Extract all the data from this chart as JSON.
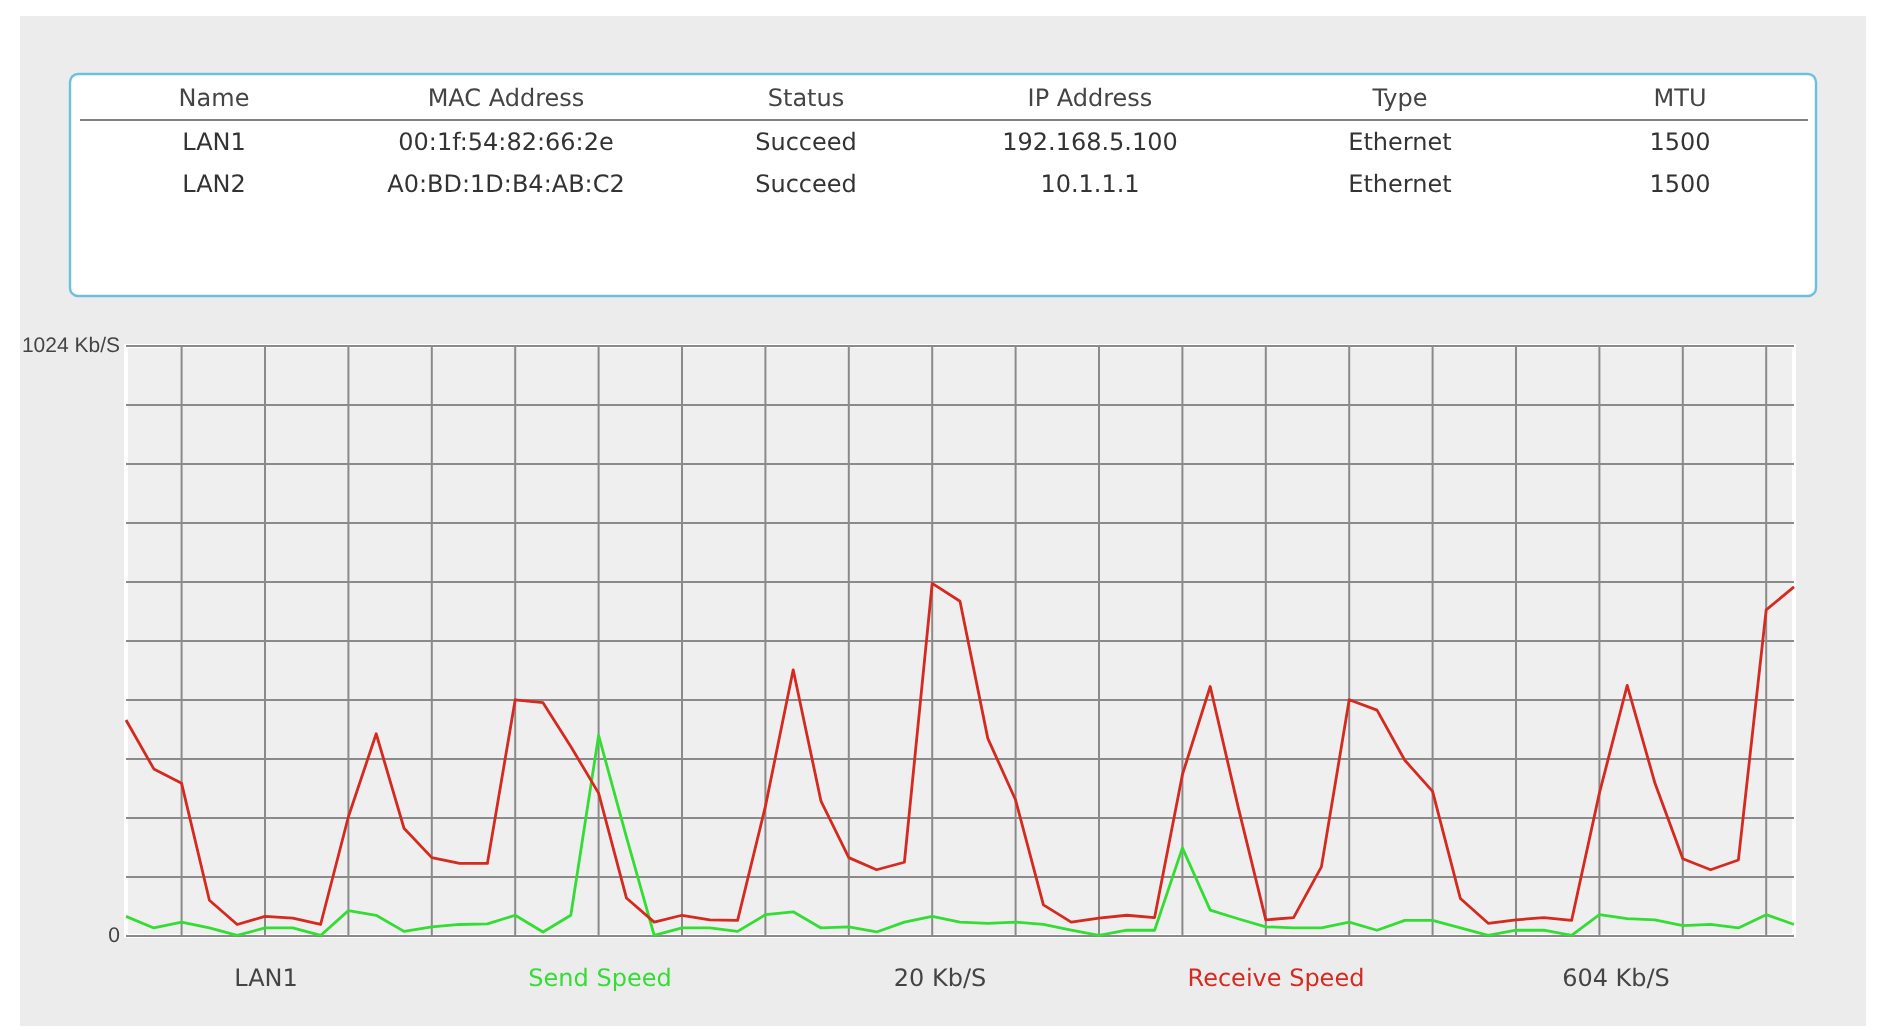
{
  "chart_data": [
    {
      "type": "other",
      "categories": [
        "Name",
        "MAC Address",
        "Status",
        "IP Address",
        "Type",
        "MTU"
      ],
      "cell_labels": [
        [
          "LAN1",
          "00:1f:54:82:66:2e",
          "Succeed",
          "192.168.5.100",
          "Ethernet",
          "1500"
        ],
        [
          "LAN2",
          "A0:BD:1D:B4:AB:C2",
          "Succeed",
          "10.1.1.1",
          "Ethernet",
          "1500"
        ]
      ]
    },
    {
      "type": "line",
      "categories": [
        null,
        null,
        null,
        null,
        null,
        null,
        null,
        null,
        null,
        null,
        null,
        null,
        null,
        null,
        null,
        null,
        null,
        null,
        null,
        null,
        null,
        null,
        null,
        null,
        null,
        null,
        null,
        null,
        null,
        null,
        null,
        null,
        null,
        null,
        null,
        null,
        null,
        null,
        null,
        null,
        null,
        null,
        null,
        null,
        null,
        null,
        null,
        null,
        null,
        null,
        null,
        null,
        null,
        null,
        null,
        null,
        null,
        null,
        null,
        null,
        null
      ],
      "series": [
        {
          "name": "Send Speed",
          "color": "#33dd33",
          "values": [
            34,
            14,
            24,
            14,
            1,
            14,
            14,
            1,
            44,
            36,
            8,
            16,
            20,
            21,
            36,
            7,
            36,
            348,
            172,
            1,
            14,
            14,
            8,
            37,
            42,
            14,
            16,
            7,
            24,
            34,
            24,
            22,
            24,
            20,
            10,
            1,
            10,
            10,
            153,
            45,
            30,
            16,
            14,
            14,
            24,
            10,
            27,
            27,
            14,
            1,
            10,
            10,
            1,
            37,
            30,
            28,
            18,
            20,
            14,
            37,
            20
          ]
        },
        {
          "name": "Receive Speed",
          "color": "#d42a1f",
          "values": [
            375,
            290,
            265,
            62,
            20,
            34,
            31,
            20,
            207,
            351,
            187,
            136,
            126,
            126,
            410,
            405,
            329,
            248,
            66,
            24,
            36,
            28,
            27,
            225,
            462,
            234,
            136,
            115,
            128,
            612,
            581,
            343,
            236,
            54,
            24,
            31,
            36,
            32,
            280,
            433,
            225,
            28,
            32,
            120,
            410,
            392,
            305,
            251,
            65,
            22,
            28,
            32,
            27,
            248,
            435,
            265,
            134,
            115,
            132,
            566,
            606
          ]
        }
      ],
      "ylim": [
        0,
        1024
      ],
      "yticks": [
        {
          "value": 0,
          "label": "0"
        },
        {
          "value": 102.4,
          "label": null
        },
        {
          "value": 204.8,
          "label": null
        },
        {
          "value": 307.2,
          "label": null
        },
        {
          "value": 409.6,
          "label": null
        },
        {
          "value": 512,
          "label": null
        },
        {
          "value": 614.4,
          "label": null
        },
        {
          "value": 716.8,
          "label": null
        },
        {
          "value": 819.2,
          "label": null
        },
        {
          "value": 921.6,
          "label": null
        },
        {
          "value": 1024,
          "label": "1024 Kb/S"
        }
      ],
      "grid": true,
      "legend": "bottom",
      "marker": "none",
      "line_style": "solid",
      "annotations": [
        "LAN1",
        "20 Kb/S",
        "604 Kb/S"
      ]
    }
  ]
}
